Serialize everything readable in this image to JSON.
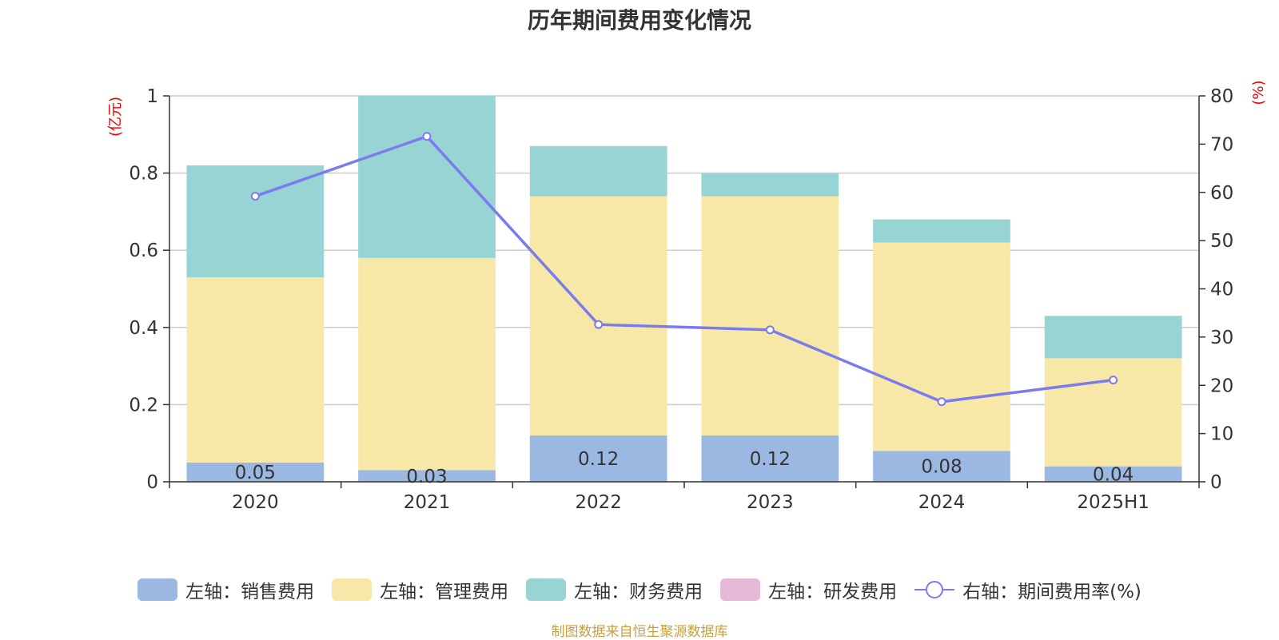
{
  "chart_data": {
    "type": "bar",
    "title": "历年期间费用变化情况",
    "categories": [
      "2020",
      "2021",
      "2022",
      "2023",
      "2024",
      "2025H1"
    ],
    "left_axis": {
      "unit_label": "(亿元)",
      "ylim": [
        0,
        1
      ],
      "ticks": [
        "0",
        "0.2",
        "0.4",
        "0.6",
        "0.8",
        "1"
      ],
      "tick_values": [
        0,
        0.2,
        0.4,
        0.6,
        0.8,
        1
      ]
    },
    "right_axis": {
      "unit_label": "(%)",
      "ylim": [
        0,
        80
      ],
      "ticks": [
        "0",
        "10",
        "20",
        "30",
        "40",
        "50",
        "60",
        "70",
        "80"
      ],
      "tick_values": [
        0,
        10,
        20,
        30,
        40,
        50,
        60,
        70,
        80
      ]
    },
    "series": [
      {
        "name": "左轴：销售费用",
        "type": "bar",
        "color": "#9bb8e2",
        "values": [
          0.05,
          0.03,
          0.12,
          0.12,
          0.08,
          0.04
        ],
        "labels": [
          "0.05",
          "0.03",
          "0.12",
          "0.12",
          "0.08",
          "0.04"
        ]
      },
      {
        "name": "左轴：管理费用",
        "type": "bar",
        "color": "#f8e8a8",
        "values": [
          0.48,
          0.55,
          0.62,
          0.62,
          0.54,
          0.28
        ]
      },
      {
        "name": "左轴：财务费用",
        "type": "bar",
        "color": "#98d4d4",
        "values": [
          0.29,
          0.42,
          0.13,
          0.06,
          0.06,
          0.11
        ]
      },
      {
        "name": "左轴：研发费用",
        "type": "bar",
        "color": "#e8b8d8",
        "values": [
          0,
          0,
          0,
          0,
          0,
          0
        ]
      },
      {
        "name": "右轴：期间费用率(%)",
        "type": "line",
        "color": "#7b7bef",
        "values": [
          59.2,
          71.6,
          32.6,
          31.5,
          16.6,
          21.1
        ]
      }
    ],
    "grid": true,
    "legend_position": "bottom"
  },
  "footer": {
    "source": "制图数据来自恒生聚源数据库"
  }
}
